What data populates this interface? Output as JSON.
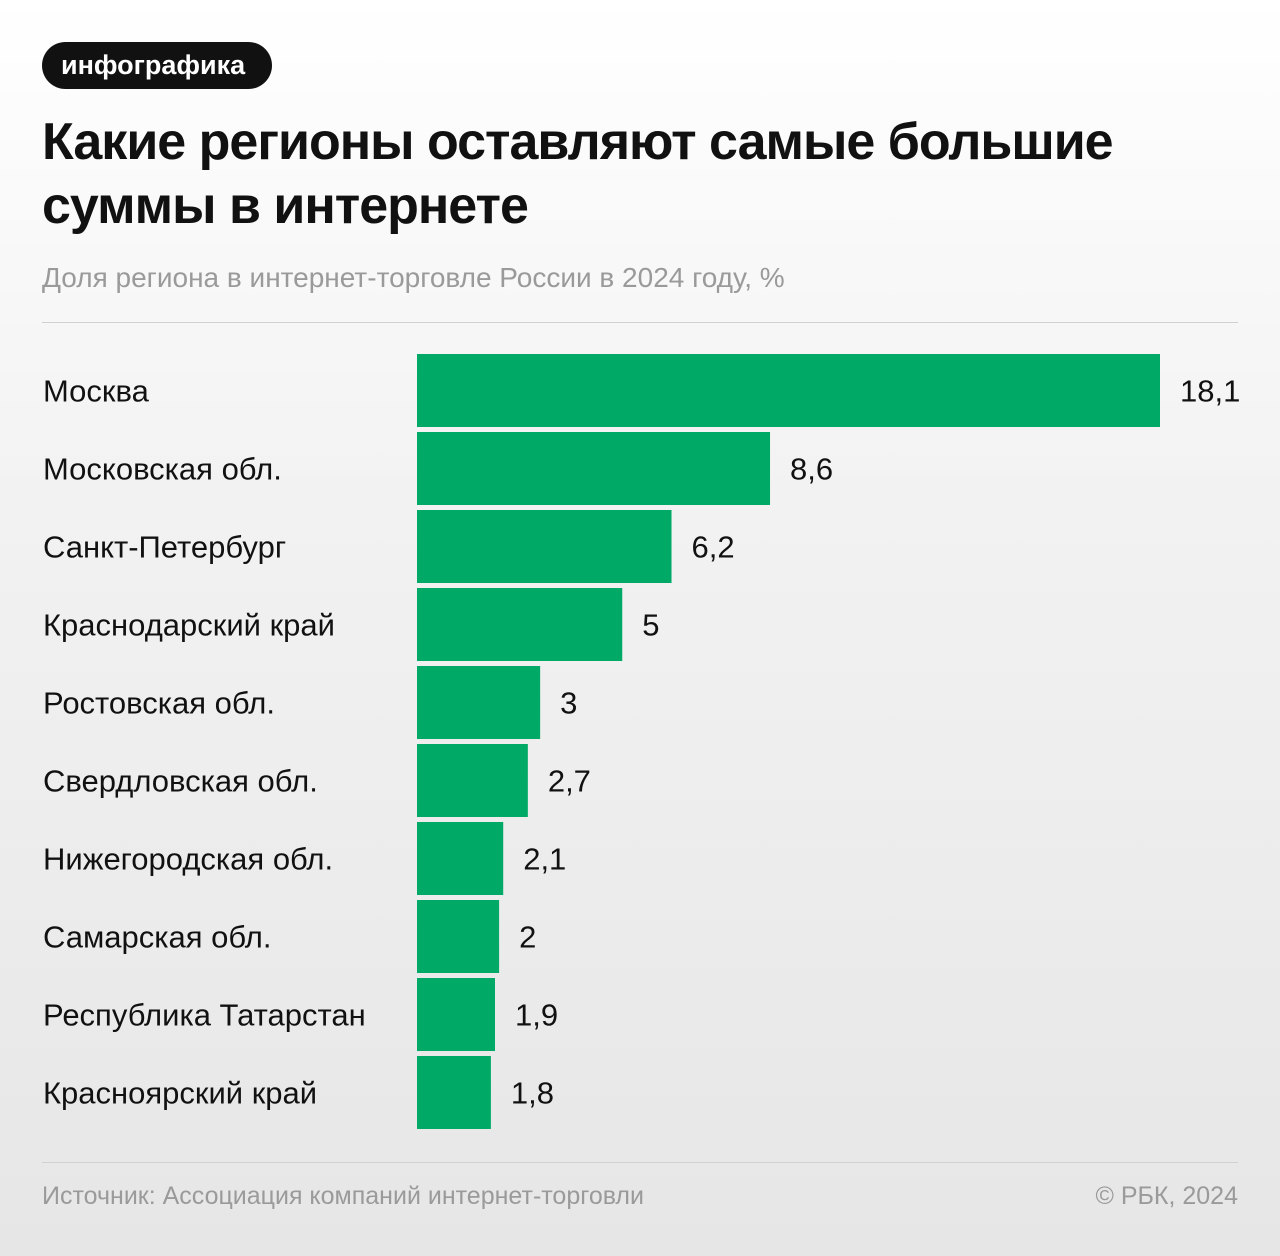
{
  "badge": "инфографика",
  "title": "Какие регионы оставляют самые большие суммы в интернете",
  "subtitle": "Доля региона в интернет-торговле России в 2024 году, %",
  "footer": {
    "source": "Источник: Ассоциация компаний интернет-торговли",
    "copyright": "© РБК, 2024"
  },
  "chart_data": {
    "type": "bar",
    "orientation": "horizontal",
    "title": "Какие регионы оставляют самые большие суммы в интернете",
    "subtitle": "Доля региона в интернет-торговле России в 2024 году, %",
    "categories": [
      "Москва",
      "Московская обл.",
      "Санкт-Петербург",
      "Краснодарский край",
      "Ростовская обл.",
      "Свердловская обл.",
      "Нижегородская обл.",
      "Самарская обл.",
      "Республика Татарстан",
      "Красноярский край"
    ],
    "values": [
      18.1,
      8.6,
      6.2,
      5,
      3,
      2.7,
      2.1,
      2,
      1.9,
      1.8
    ],
    "value_labels": [
      "18,1",
      "8,6",
      "6,2",
      "5",
      "3",
      "2,7",
      "2,1",
      "2",
      "1,9",
      "1,8"
    ],
    "bar_color": "#00a965",
    "xlim": [
      0,
      18.1
    ],
    "grid": false,
    "legend": "none"
  }
}
